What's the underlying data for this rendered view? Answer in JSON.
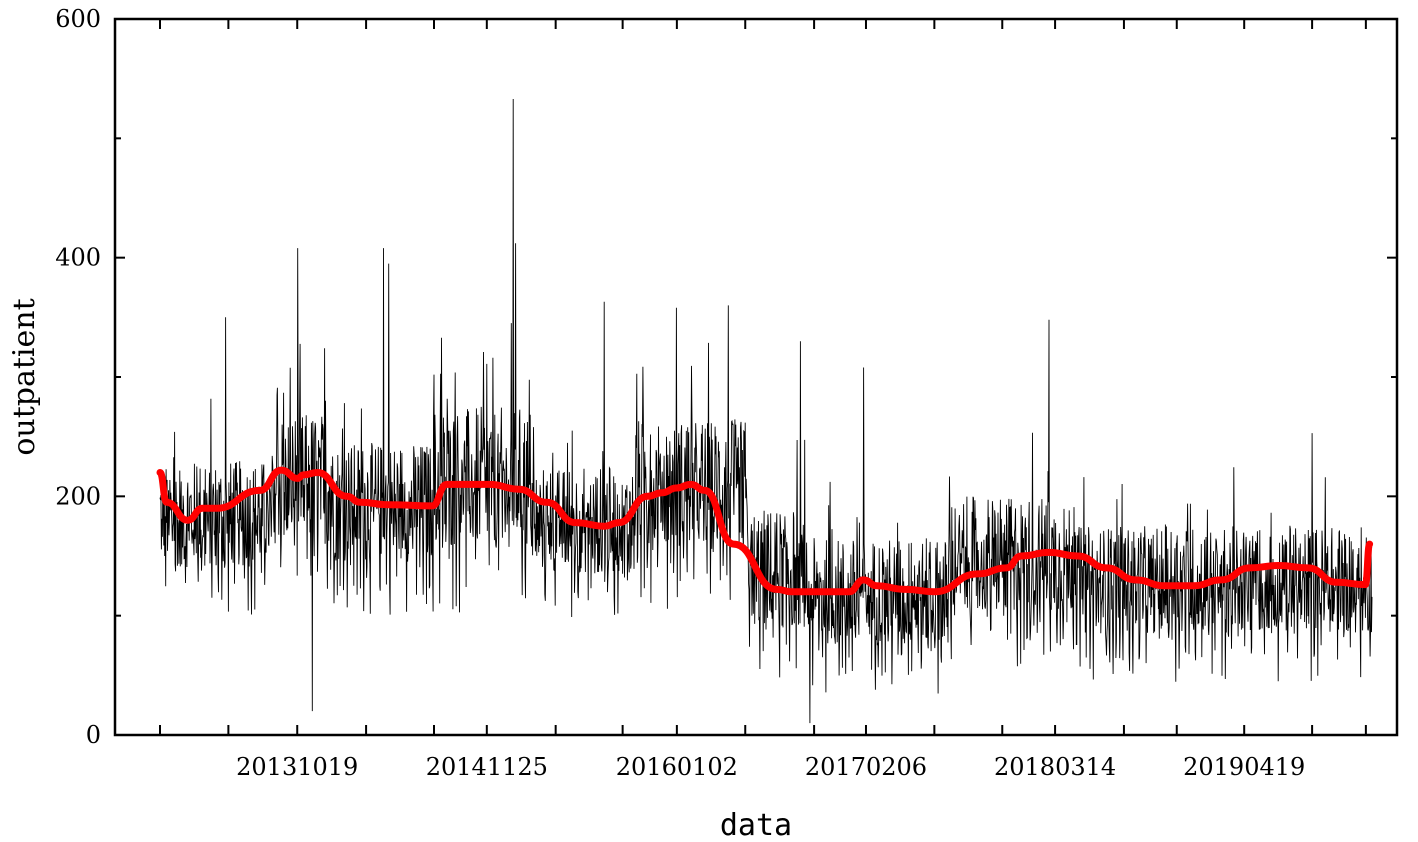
{
  "chart_data": {
    "type": "line",
    "xlabel": "data",
    "ylabel": "outpatient",
    "ylim": [
      0,
      600
    ],
    "yticks": [
      0,
      200,
      400,
      600
    ],
    "ytick_labels": [
      "0",
      "200",
      "400",
      "600"
    ],
    "ytick_minor": [
      100,
      300,
      500
    ],
    "xlim": [
      "20130101",
      "20200115"
    ],
    "xticks": [
      "20130101",
      "20130526",
      "20131019",
      "20140314",
      "20140805",
      "20141125",
      "20150420",
      "20150909",
      "20160102",
      "20160526",
      "20161019",
      "20170206",
      "20170701",
      "20171122",
      "20180314",
      "20180807",
      "20181127",
      "20190419",
      "20190910",
      "20200102"
    ],
    "xtick_labels": [
      {
        "at": "20131019",
        "label": "20131019"
      },
      {
        "at": "20141125",
        "label": "20141125"
      },
      {
        "at": "20160102",
        "label": "20160102"
      },
      {
        "at": "20170206",
        "label": "20170206"
      },
      {
        "at": "20180314",
        "label": "20180314"
      },
      {
        "at": "20190419",
        "label": "20190419"
      }
    ],
    "grid": false,
    "series": [
      {
        "role": "daily",
        "color": "#000000",
        "segments": [
          {
            "start": "20130101",
            "end": "20130901",
            "mean": 185,
            "spread": 45
          },
          {
            "start": "20130901",
            "end": "20140101",
            "mean": 215,
            "spread": 55
          },
          {
            "start": "20140101",
            "end": "20140801",
            "mean": 195,
            "spread": 50
          },
          {
            "start": "20140801",
            "end": "20150301",
            "mean": 215,
            "spread": 60
          },
          {
            "start": "20150301",
            "end": "20151001",
            "mean": 180,
            "spread": 45
          },
          {
            "start": "20151001",
            "end": "20160601",
            "mean": 210,
            "spread": 55
          },
          {
            "start": "20160601",
            "end": "20161001",
            "mean": 140,
            "spread": 50
          },
          {
            "start": "20161001",
            "end": "20170801",
            "mean": 120,
            "spread": 45
          },
          {
            "start": "20170801",
            "end": "20180501",
            "mean": 150,
            "spread": 50
          },
          {
            "start": "20180501",
            "end": "20200115",
            "mean": 130,
            "spread": 45
          }
        ],
        "spikes": [
          {
            "x": "20130520",
            "y": 350
          },
          {
            "x": "20131020",
            "y": 408
          },
          {
            "x": "20131120",
            "y": 20
          },
          {
            "x": "20140420",
            "y": 408
          },
          {
            "x": "20140501",
            "y": 395
          },
          {
            "x": "20150120",
            "y": 533
          },
          {
            "x": "20150125",
            "y": 412
          },
          {
            "x": "20150801",
            "y": 363
          },
          {
            "x": "20160101",
            "y": 358
          },
          {
            "x": "20160420",
            "y": 360
          },
          {
            "x": "20160920",
            "y": 330
          },
          {
            "x": "20161010",
            "y": 10
          },
          {
            "x": "20170201",
            "y": 308
          },
          {
            "x": "20180301",
            "y": 348
          },
          {
            "x": "20190910",
            "y": 253
          }
        ]
      },
      {
        "role": "smoothed",
        "color": "#ff0000",
        "x": [
          "20130101",
          "20130115",
          "20130301",
          "20130401",
          "20130501",
          "20130801",
          "20130915",
          "20131020",
          "20131101",
          "20131201",
          "20140201",
          "20140301",
          "20140501",
          "20140801",
          "20140901",
          "20141201",
          "20150201",
          "20150401",
          "20150601",
          "20150801",
          "20150901",
          "20151101",
          "20151201",
          "20160101",
          "20160201",
          "20160301",
          "20160501",
          "20160801",
          "20160901",
          "20161101",
          "20170101",
          "20170201",
          "20170301",
          "20170501",
          "20170701",
          "20171001",
          "20171201",
          "20180101",
          "20180301",
          "20180501",
          "20180701",
          "20180901",
          "20181101",
          "20190101",
          "20190301",
          "20190501",
          "20190701",
          "20190901",
          "20191101",
          "20200101",
          "20200110"
        ],
        "y": [
          220,
          195,
          180,
          190,
          190,
          205,
          222,
          215,
          218,
          220,
          200,
          195,
          193,
          192,
          210,
          210,
          206,
          195,
          178,
          175,
          178,
          200,
          203,
          207,
          210,
          205,
          160,
          122,
          120,
          120,
          120,
          130,
          125,
          122,
          120,
          135,
          140,
          150,
          153,
          150,
          140,
          130,
          125,
          125,
          130,
          140,
          142,
          140,
          128,
          126,
          160
        ]
      }
    ]
  }
}
